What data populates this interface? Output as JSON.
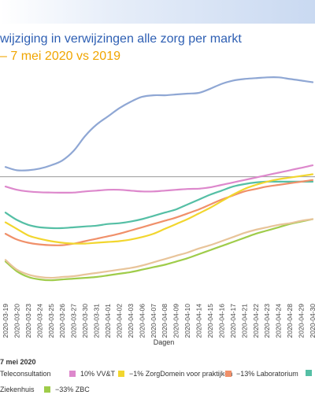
{
  "header": {
    "title": "wijziging in verwijzingen alle zorg per markt",
    "subtitle": "– 7 mei 2020 vs 2019"
  },
  "footnote": "7 mei 2020",
  "chart_data": {
    "type": "line",
    "xlabel": "Dagen",
    "ylabel": "",
    "x": [
      "2020-03-19",
      "2020-03-20",
      "2020-03-23",
      "2020-03-24",
      "2020-03-25",
      "2020-03-26",
      "2020-03-27",
      "2020-03-30",
      "2020-03-31",
      "2020-04-01",
      "2020-04-02",
      "2020-04-03",
      "2020-04-06",
      "2020-04-07",
      "2020-04-08",
      "2020-04-09",
      "2020-04-10",
      "2020-04-14",
      "2020-04-15",
      "2020-04-16",
      "2020-04-17",
      "2020-04-21",
      "2020-04-22",
      "2020-04-23",
      "2020-04-24",
      "2020-04-28",
      "2020-04-29",
      "2020-04-30"
    ],
    "ylim": [
      -75,
      65
    ],
    "baseline": 0,
    "grid": false,
    "legend_position": "bottom",
    "series": [
      {
        "name": "Teleconsultation",
        "color": "#8fa7d4",
        "values": [
          6,
          4,
          4,
          5,
          7,
          10,
          16,
          25,
          32,
          37,
          42,
          46,
          49,
          50,
          50,
          50.5,
          51,
          51.5,
          54,
          57,
          59,
          60,
          60.5,
          61,
          61,
          60,
          59,
          58
        ]
      },
      {
        "name": "10% VV&T",
        "color": "#dd88cc",
        "values": [
          -6,
          -8,
          -9,
          -9.5,
          -9.7,
          -9.8,
          -9.7,
          -9,
          -8.5,
          -8,
          -8,
          -8.5,
          -9,
          -9,
          -8.5,
          -8,
          -7.5,
          -7.3,
          -6.5,
          -5,
          -3.5,
          -2,
          -0.5,
          1,
          2.5,
          4,
          5.5,
          7
        ]
      },
      {
        "name": "−1% ZorgDomein voor praktijken",
        "color": "#f2d62e",
        "values": [
          -28,
          -32,
          -36,
          -38,
          -39.5,
          -40.5,
          -41,
          -41,
          -40.5,
          -40,
          -39.5,
          -38.5,
          -37,
          -35,
          -32,
          -29,
          -26,
          -22.5,
          -19,
          -15,
          -11,
          -7.5,
          -5,
          -3,
          -1.5,
          -0.5,
          0.5,
          1.5
        ]
      },
      {
        "name": "−13% Laboratorium",
        "color": "#f0906a",
        "values": [
          -35,
          -38.5,
          -40.5,
          -41.5,
          -42,
          -42,
          -41,
          -39.5,
          -38,
          -36.5,
          -35,
          -33,
          -31,
          -29,
          -27,
          -25,
          -22.5,
          -20,
          -17,
          -14,
          -11.5,
          -9,
          -7.5,
          -6,
          -5,
          -4,
          -3,
          -2
        ]
      },
      {
        "name": "",
        "color": "#55bfa5",
        "values": [
          -22,
          -26.5,
          -29.5,
          -31,
          -31.5,
          -31.5,
          -31,
          -30.5,
          -30,
          -29,
          -28.5,
          -27.5,
          -26,
          -24,
          -22,
          -20,
          -17,
          -14,
          -11,
          -8.5,
          -6,
          -4.5,
          -3.5,
          -3,
          -3,
          -3,
          -3,
          -3
        ]
      },
      {
        "name": "Ziekenhuis",
        "color": "#e8c49a",
        "values": [
          -51,
          -57,
          -60,
          -61.5,
          -62,
          -61.5,
          -61,
          -60,
          -59,
          -58,
          -57,
          -56,
          -54.5,
          -52.5,
          -50.5,
          -48.5,
          -46.5,
          -44,
          -42,
          -39.5,
          -37,
          -34.5,
          -32.5,
          -31,
          -29.5,
          -28.5,
          -27,
          -26
        ]
      },
      {
        "name": "−33% ZBC",
        "color": "#9fcc4a",
        "values": [
          -52,
          -58,
          -61.5,
          -63,
          -63.5,
          -63,
          -62.5,
          -62,
          -61.5,
          -60.5,
          -59.5,
          -58.5,
          -57,
          -55.5,
          -54,
          -52,
          -50,
          -47.5,
          -45,
          -42.5,
          -40,
          -37.5,
          -35,
          -33,
          -31,
          -29,
          -27.5,
          -26
        ]
      }
    ]
  }
}
